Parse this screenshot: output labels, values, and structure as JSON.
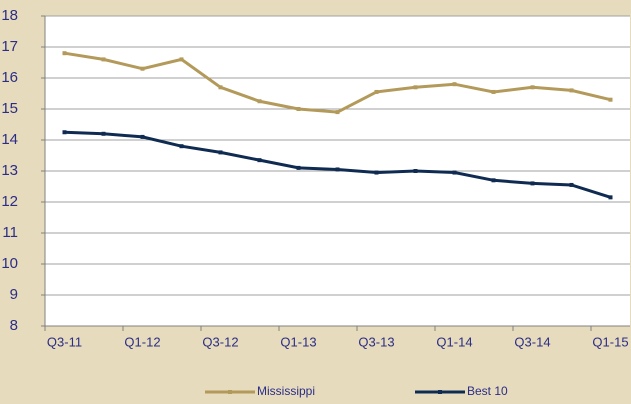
{
  "chart_data": {
    "type": "line",
    "categories": [
      "Q3-11",
      null,
      "Q1-12",
      null,
      "Q3-12",
      null,
      "Q1-13",
      null,
      "Q3-13",
      null,
      "Q1-14",
      null,
      "Q3-14",
      null,
      "Q1-15"
    ],
    "series": [
      {
        "name": "Mississippi",
        "color": "#b39a5a",
        "values": [
          16.8,
          16.6,
          16.3,
          16.6,
          15.7,
          15.25,
          15.0,
          14.9,
          15.55,
          15.7,
          15.8,
          15.55,
          15.7,
          15.6,
          15.3
        ]
      },
      {
        "name": "Best 10",
        "color": "#0f2b52",
        "values": [
          14.25,
          14.2,
          14.1,
          13.8,
          13.6,
          13.35,
          13.1,
          13.05,
          12.95,
          13.0,
          12.95,
          12.7,
          12.6,
          12.55,
          12.15
        ]
      }
    ],
    "ylim": [
      8,
      18
    ],
    "yticks": [
      8,
      9,
      10,
      11,
      12,
      13,
      14,
      15,
      16,
      17,
      18
    ],
    "grid": true,
    "legend": "bottom"
  }
}
